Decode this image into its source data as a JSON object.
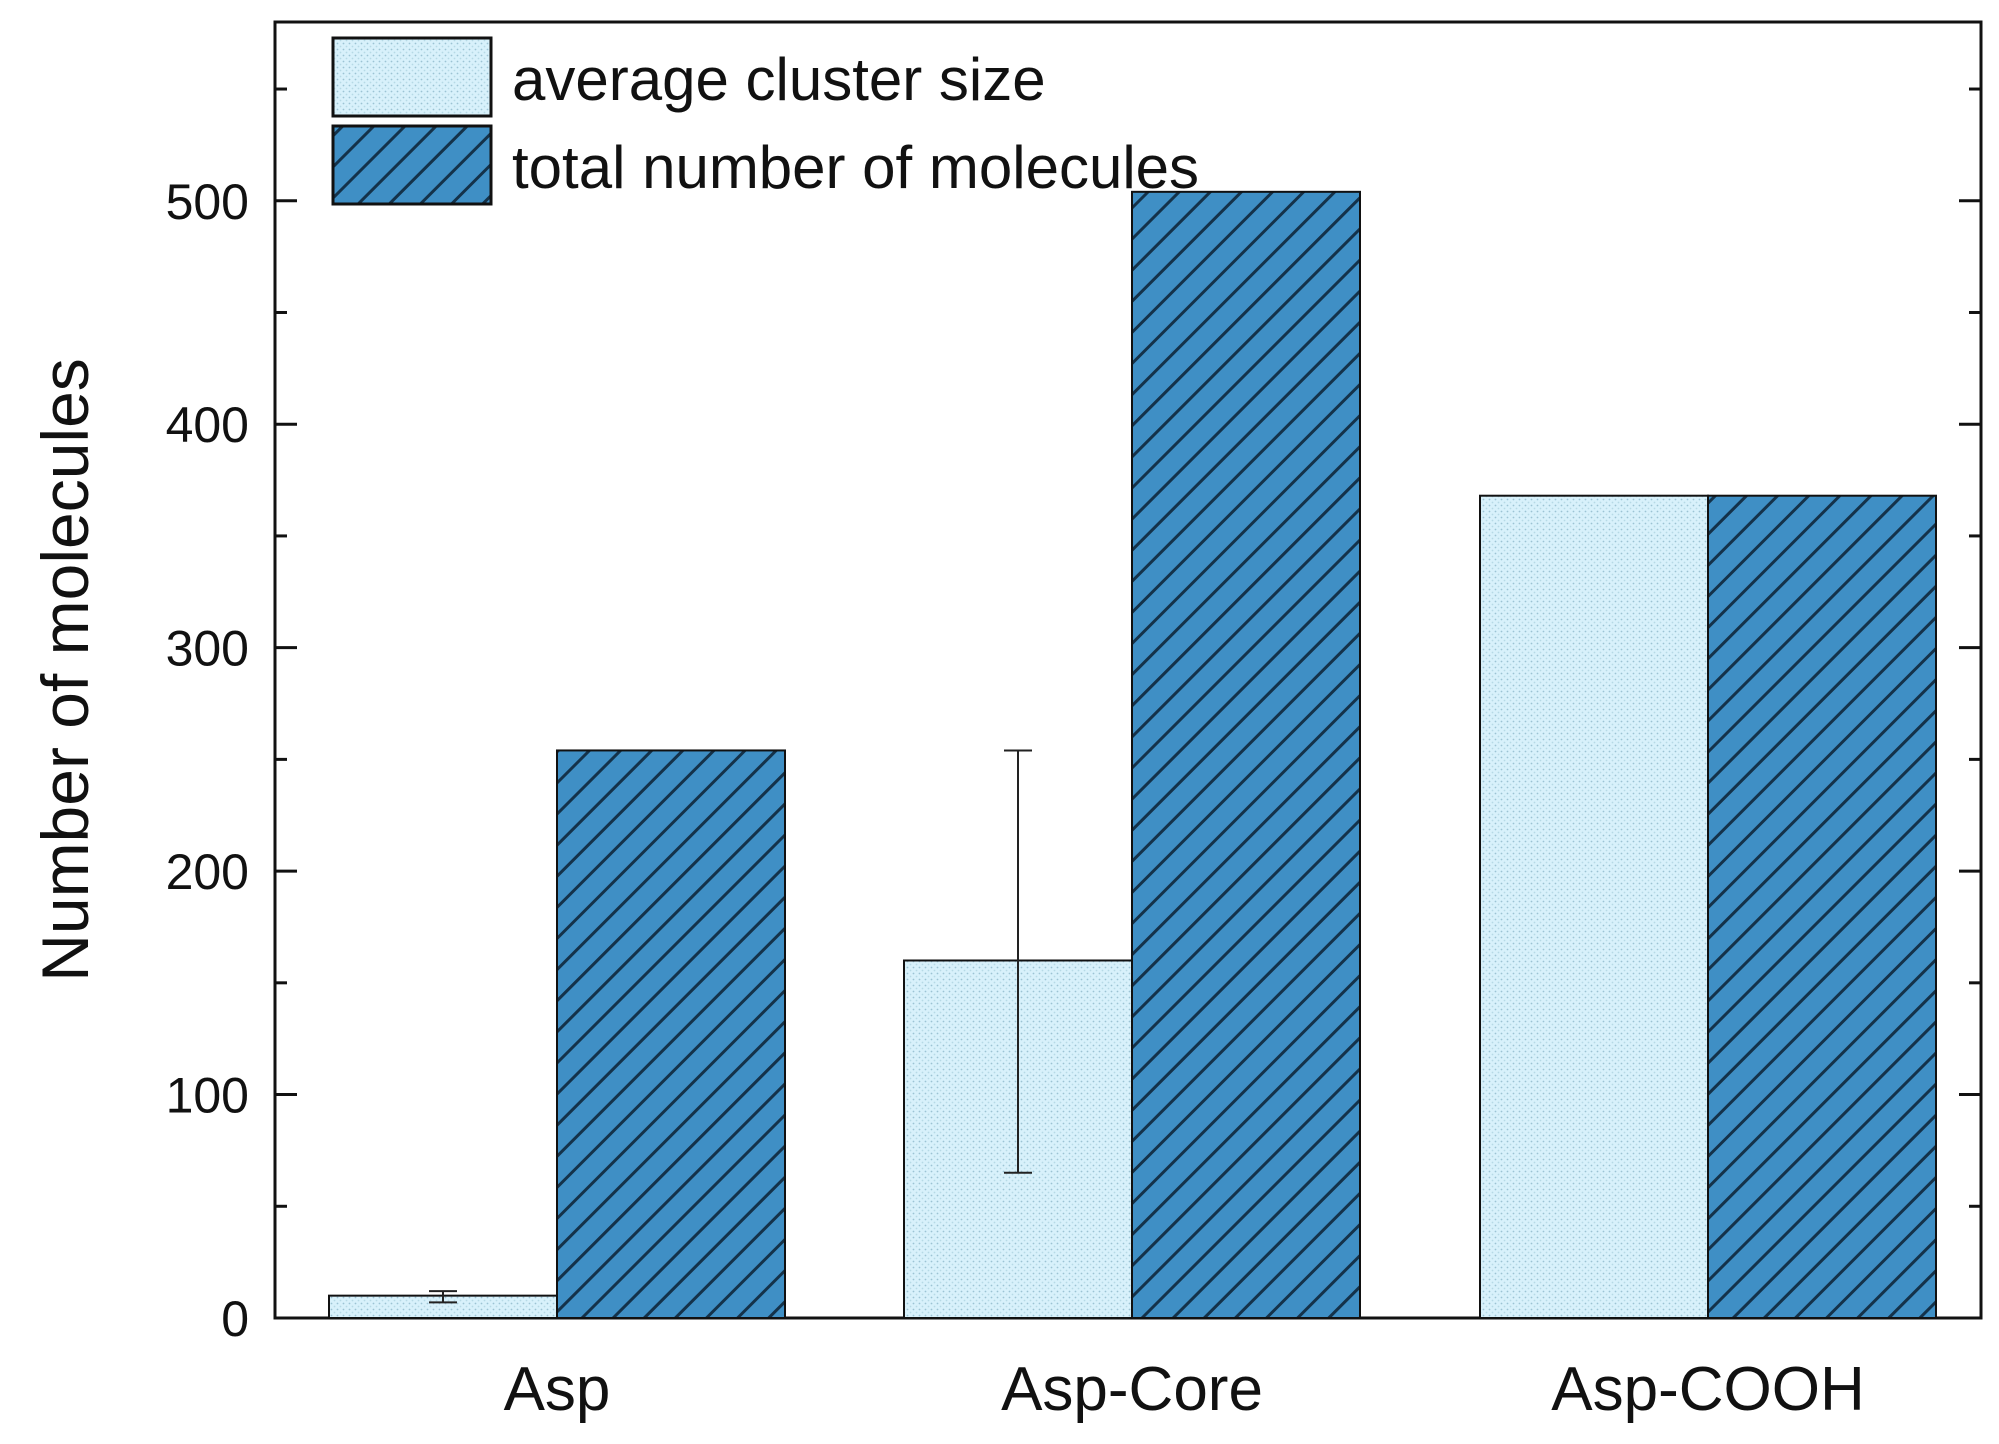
{
  "chart_data": {
    "type": "bar",
    "title": "",
    "xlabel": "",
    "ylabel": "Number of molecules",
    "categories": [
      "Asp",
      "Asp-Core",
      "Asp-COOH"
    ],
    "ylim": [
      0,
      580
    ],
    "yticks": [
      0,
      100,
      200,
      300,
      400,
      500
    ],
    "ytick_labels": [
      "0",
      "100",
      "200",
      "300",
      "400",
      "500"
    ],
    "minor_tick_step": 50,
    "grid": false,
    "legend_position": "top-left",
    "series": [
      {
        "name": "average cluster size",
        "values": [
          10,
          160,
          368
        ],
        "error": [
          [
            7,
            65,
            null
          ],
          [
            12,
            254,
            null
          ]
        ],
        "color": "#d8f1fb",
        "pattern": "dots"
      },
      {
        "name": "total number of molecules",
        "values": [
          254,
          504,
          368
        ],
        "color": "#3f8fc5",
        "pattern": "hatch"
      }
    ]
  }
}
